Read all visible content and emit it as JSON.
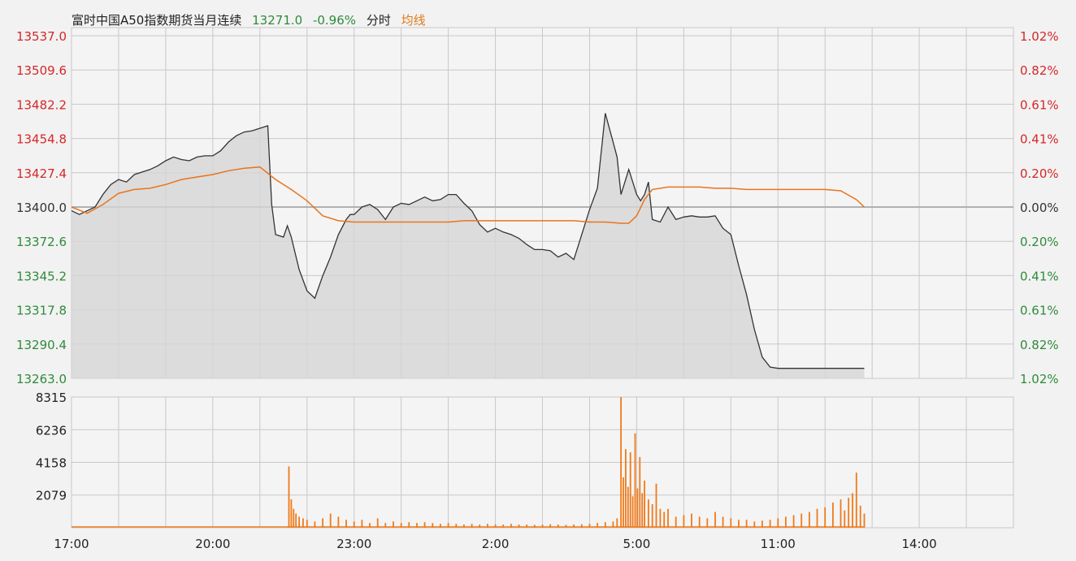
{
  "header": {
    "instrument": "富时中国A50指数期货当月连续",
    "price": "13271.0",
    "change_pct": "-0.96%",
    "mode": "分时",
    "avg_label": "均线"
  },
  "colors": {
    "up": "#d62728",
    "down": "#2e8b3a",
    "price_line": "#333333",
    "avg_line": "#e8741e",
    "volume": "#f07a1a",
    "area_fill": "#d6d6d6",
    "grid": "#c8c8c8"
  },
  "chart_data": [
    {
      "type": "line",
      "name": "price",
      "ylim": [
        13263.0,
        13537.0
      ],
      "xlim": [
        0,
        1200
      ],
      "base": 13400.0,
      "y_ticks_left": [
        "13537.0",
        "13509.6",
        "13482.2",
        "13454.8",
        "13427.4",
        "13400.0",
        "13372.6",
        "13345.2",
        "13317.8",
        "13290.4",
        "13263.0"
      ],
      "y_ticks_right": [
        "1.02%",
        "0.82%",
        "0.61%",
        "0.41%",
        "0.20%",
        "0.00%",
        "0.20%",
        "0.41%",
        "0.61%",
        "0.82%",
        "1.02%"
      ],
      "x_tick_labels": [
        "17:00",
        "20:00",
        "23:00",
        "2:00",
        "5:00",
        "11:00",
        "14:00"
      ],
      "x_tick_pos": [
        0,
        180,
        360,
        540,
        720,
        900,
        1080
      ],
      "series": [
        {
          "name": "price",
          "x": [
            0,
            10,
            20,
            30,
            40,
            50,
            60,
            70,
            80,
            90,
            100,
            110,
            120,
            130,
            140,
            150,
            160,
            170,
            180,
            190,
            200,
            210,
            220,
            230,
            240,
            250,
            255,
            260,
            270,
            275,
            280,
            290,
            300,
            310,
            320,
            330,
            340,
            350,
            355,
            360,
            370,
            380,
            390,
            400,
            410,
            420,
            430,
            440,
            450,
            460,
            470,
            480,
            490,
            500,
            510,
            520,
            530,
            540,
            550,
            560,
            570,
            580,
            590,
            600,
            610,
            620,
            630,
            640,
            650,
            660,
            670,
            680,
            690,
            695,
            700,
            705,
            710,
            715,
            720,
            725,
            730,
            735,
            740,
            750,
            760,
            770,
            780,
            790,
            800,
            810,
            820,
            830,
            840,
            850,
            860,
            870,
            880,
            890,
            900,
            910,
            920,
            930,
            940,
            950,
            960,
            970,
            980,
            990,
            995,
            1000,
            1005,
            1010
          ],
          "values": [
            13397,
            13394,
            13397,
            13400,
            13410,
            13418,
            13422,
            13420,
            13426,
            13428,
            13430,
            13433,
            13437,
            13440,
            13438,
            13437,
            13440,
            13441,
            13441,
            13445,
            13452,
            13457,
            13460,
            13461,
            13463,
            13465,
            13402,
            13378,
            13376,
            13385,
            13376,
            13350,
            13333,
            13327,
            13345,
            13360,
            13378,
            13390,
            13394,
            13394,
            13400,
            13402,
            13398,
            13390,
            13400,
            13403,
            13402,
            13405,
            13408,
            13405,
            13406,
            13410,
            13410,
            13403,
            13397,
            13386,
            13380,
            13383,
            13380,
            13378,
            13375,
            13370,
            13366,
            13366,
            13365,
            13360,
            13363,
            13358,
            13378,
            13398,
            13415,
            13475,
            13452,
            13440,
            13410,
            13420,
            13430,
            13420,
            13410,
            13405,
            13410,
            13420,
            13390,
            13388,
            13400,
            13390,
            13392,
            13393,
            13392,
            13392,
            13393,
            13383,
            13378,
            13353,
            13330,
            13302,
            13280,
            13272,
            13271,
            13271,
            13271,
            13271,
            13271,
            13271,
            13271,
            13271,
            13271,
            13271,
            13271,
            13271,
            13271,
            13271
          ]
        },
        {
          "name": "avg",
          "x": [
            0,
            20,
            40,
            60,
            80,
            100,
            120,
            140,
            160,
            180,
            200,
            220,
            240,
            260,
            280,
            300,
            320,
            340,
            360,
            380,
            400,
            420,
            440,
            460,
            480,
            500,
            520,
            540,
            560,
            580,
            600,
            620,
            640,
            660,
            680,
            700,
            710,
            720,
            730,
            740,
            760,
            780,
            800,
            820,
            840,
            860,
            880,
            900,
            920,
            940,
            960,
            980,
            1000,
            1010
          ],
          "values": [
            13400,
            13395,
            13402,
            13411,
            13414,
            13415,
            13418,
            13422,
            13424,
            13426,
            13429,
            13431,
            13432,
            13422,
            13414,
            13405,
            13393,
            13389,
            13388,
            13388,
            13388,
            13388,
            13388,
            13388,
            13388,
            13389,
            13389,
            13389,
            13389,
            13389,
            13389,
            13389,
            13389,
            13388,
            13388,
            13387,
            13387,
            13393,
            13406,
            13414,
            13416,
            13416,
            13416,
            13415,
            13415,
            13414,
            13414,
            13414,
            13414,
            13414,
            13414,
            13413,
            13406,
            13400
          ]
        }
      ]
    },
    {
      "type": "bar",
      "name": "volume",
      "ylim": [
        0,
        8315
      ],
      "y_ticks": [
        "8315",
        "6236",
        "4158",
        "2079"
      ],
      "y_tick_values": [
        8315,
        6236,
        4158,
        2079
      ],
      "x": [
        277,
        280,
        283,
        286,
        290,
        295,
        300,
        310,
        320,
        330,
        340,
        350,
        360,
        370,
        380,
        390,
        400,
        410,
        420,
        430,
        440,
        450,
        460,
        470,
        480,
        490,
        500,
        510,
        520,
        530,
        540,
        550,
        560,
        570,
        580,
        590,
        600,
        610,
        620,
        630,
        640,
        650,
        660,
        670,
        680,
        690,
        695,
        700,
        703,
        706,
        709,
        712,
        715,
        718,
        721,
        724,
        727,
        730,
        735,
        740,
        745,
        750,
        755,
        760,
        770,
        780,
        790,
        800,
        810,
        820,
        830,
        840,
        850,
        860,
        870,
        880,
        890,
        900,
        910,
        920,
        930,
        940,
        950,
        960,
        970,
        980,
        985,
        990,
        995,
        1000,
        1005,
        1010
      ],
      "values": [
        3900,
        1800,
        1200,
        900,
        700,
        600,
        500,
        400,
        600,
        900,
        700,
        500,
        400,
        500,
        300,
        600,
        300,
        400,
        300,
        350,
        300,
        350,
        300,
        250,
        300,
        250,
        200,
        250,
        200,
        250,
        200,
        200,
        250,
        200,
        200,
        180,
        200,
        220,
        200,
        180,
        200,
        220,
        250,
        300,
        350,
        400,
        600,
        8300,
        3200,
        5000,
        2600,
        4800,
        2000,
        6000,
        2500,
        4500,
        2200,
        3000,
        1800,
        1500,
        2800,
        1200,
        1000,
        1200,
        700,
        800,
        900,
        700,
        600,
        1000,
        700,
        600,
        500,
        500,
        400,
        450,
        500,
        600,
        700,
        800,
        900,
        1000,
        1200,
        1300,
        1600,
        1800,
        1100,
        1900,
        2200,
        3500,
        1400,
        900
      ]
    }
  ]
}
